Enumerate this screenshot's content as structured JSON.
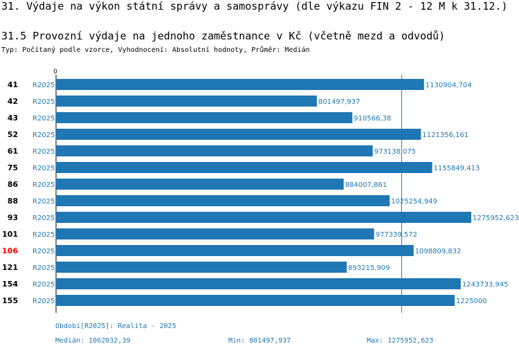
{
  "header": {
    "title": "31. Výdaje na výkon státní správy a samosprávy (dle výkazu FIN 2 - 12 M k 31.12.)",
    "subtitle": "31.5 Provozní výdaje na jednoho zaměstnance v Kč (včetně mezd a odvodů)",
    "info": "Typ: Počítaný podle vzorce, Vyhodnocení: Absolutní hodnoty, Průměr: Medián"
  },
  "colors": {
    "bar": "#1f77b4",
    "highlight": "#ff0000",
    "label": "#1f77b4"
  },
  "chart_data": {
    "type": "bar",
    "orientation": "horizontal",
    "x_axis_zero_label": "0",
    "xlim": [
      0,
      1275952.623
    ],
    "series_label": "R2025",
    "highlight_category": "106",
    "median_value": 1062032.39,
    "rows": [
      {
        "category": "41",
        "series": "R2025",
        "value": 1130904.704,
        "label": "1130904,704"
      },
      {
        "category": "42",
        "series": "R2025",
        "value": 801497.937,
        "label": "801497,937"
      },
      {
        "category": "43",
        "series": "R2025",
        "value": 910566.38,
        "label": "910566,38"
      },
      {
        "category": "52",
        "series": "R2025",
        "value": 1121356.161,
        "label": "1121356,161"
      },
      {
        "category": "61",
        "series": "R2025",
        "value": 973138.075,
        "label": "973138,075"
      },
      {
        "category": "75",
        "series": "R2025",
        "value": 1155849.413,
        "label": "1155849,413"
      },
      {
        "category": "86",
        "series": "R2025",
        "value": 884007.861,
        "label": "884007,861"
      },
      {
        "category": "88",
        "series": "R2025",
        "value": 1025254.949,
        "label": "1025254,949"
      },
      {
        "category": "93",
        "series": "R2025",
        "value": 1275952.623,
        "label": "1275952,623"
      },
      {
        "category": "101",
        "series": "R2025",
        "value": 977339.572,
        "label": "977339,572"
      },
      {
        "category": "106",
        "series": "R2025",
        "value": 1098809.832,
        "label": "1098809,832"
      },
      {
        "category": "121",
        "series": "R2025",
        "value": 893215.909,
        "label": "893215,909"
      },
      {
        "category": "154",
        "series": "R2025",
        "value": 1243733.945,
        "label": "1243733,945"
      },
      {
        "category": "155",
        "series": "R2025",
        "value": 1225000,
        "label": "1225000"
      }
    ]
  },
  "footer": {
    "period": "Období[R2025]: Realita - 2025",
    "median": "Medián: 1062032,39",
    "min": "Min: 801497,937",
    "max": "Max: 1275952,623"
  }
}
